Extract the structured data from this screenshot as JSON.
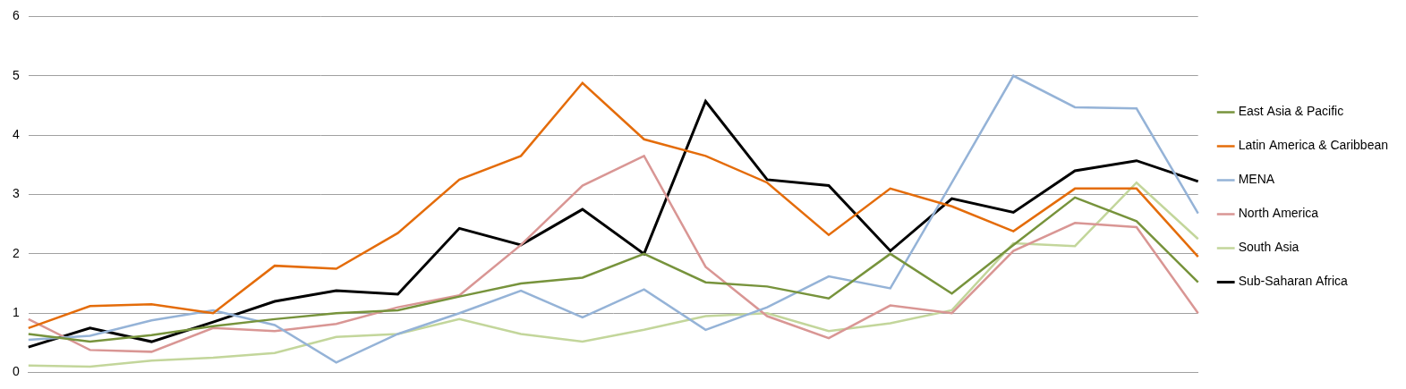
{
  "chart_data": {
    "type": "line",
    "categories": [
      null,
      null,
      null,
      null,
      null,
      null,
      null,
      null,
      null,
      null,
      null,
      null,
      null,
      null,
      null,
      null,
      null,
      null,
      null,
      null
    ],
    "series": [
      {
        "name": "East Asia & Pacific",
        "color": "#77933c",
        "values": [
          0.65,
          0.52,
          0.63,
          0.78,
          0.9,
          1.0,
          1.05,
          1.28,
          1.5,
          1.6,
          2.0,
          1.52,
          1.45,
          1.25,
          2.0,
          1.33,
          2.15,
          2.95,
          2.55,
          1.52
        ]
      },
      {
        "name": "Latin America & Caribbean",
        "color": "#e46c0a",
        "values": [
          0.75,
          1.12,
          1.15,
          1.0,
          1.8,
          1.75,
          2.35,
          3.25,
          3.65,
          4.88,
          3.93,
          3.65,
          3.2,
          2.32,
          3.1,
          2.8,
          2.38,
          3.1,
          3.1,
          1.95
        ]
      },
      {
        "name": "MENA",
        "color": "#95b3d7",
        "values": [
          0.55,
          0.62,
          0.88,
          1.05,
          0.8,
          0.17,
          0.65,
          1.0,
          1.38,
          0.93,
          1.4,
          0.72,
          1.1,
          1.62,
          1.42,
          3.2,
          5.0,
          4.47,
          4.45,
          2.68
        ]
      },
      {
        "name": "North America",
        "color": "#d99694",
        "values": [
          0.9,
          0.38,
          0.35,
          0.75,
          0.7,
          0.82,
          1.1,
          1.3,
          2.15,
          3.15,
          3.65,
          1.78,
          0.95,
          0.58,
          1.13,
          1.0,
          2.05,
          2.52,
          2.45,
          1.0
        ]
      },
      {
        "name": "South Asia",
        "color": "#c3d69b",
        "values": [
          0.12,
          0.1,
          0.2,
          0.25,
          0.33,
          0.6,
          0.65,
          0.9,
          0.65,
          0.52,
          0.72,
          0.95,
          1.0,
          0.7,
          0.83,
          1.05,
          2.18,
          2.13,
          3.2,
          2.25
        ]
      },
      {
        "name": "Sub-Saharan Africa",
        "color": "#000000",
        "values": [
          0.43,
          0.75,
          0.52,
          0.85,
          1.2,
          1.38,
          1.32,
          2.43,
          2.15,
          2.75,
          2.0,
          4.57,
          3.25,
          3.15,
          2.05,
          2.93,
          2.7,
          3.4,
          3.57,
          3.22
        ]
      }
    ],
    "ylim": [
      0,
      6
    ],
    "yticks": [
      0,
      1,
      2,
      3,
      4,
      5,
      6
    ],
    "grid": true,
    "legend": "right",
    "tick_labels": "y"
  }
}
